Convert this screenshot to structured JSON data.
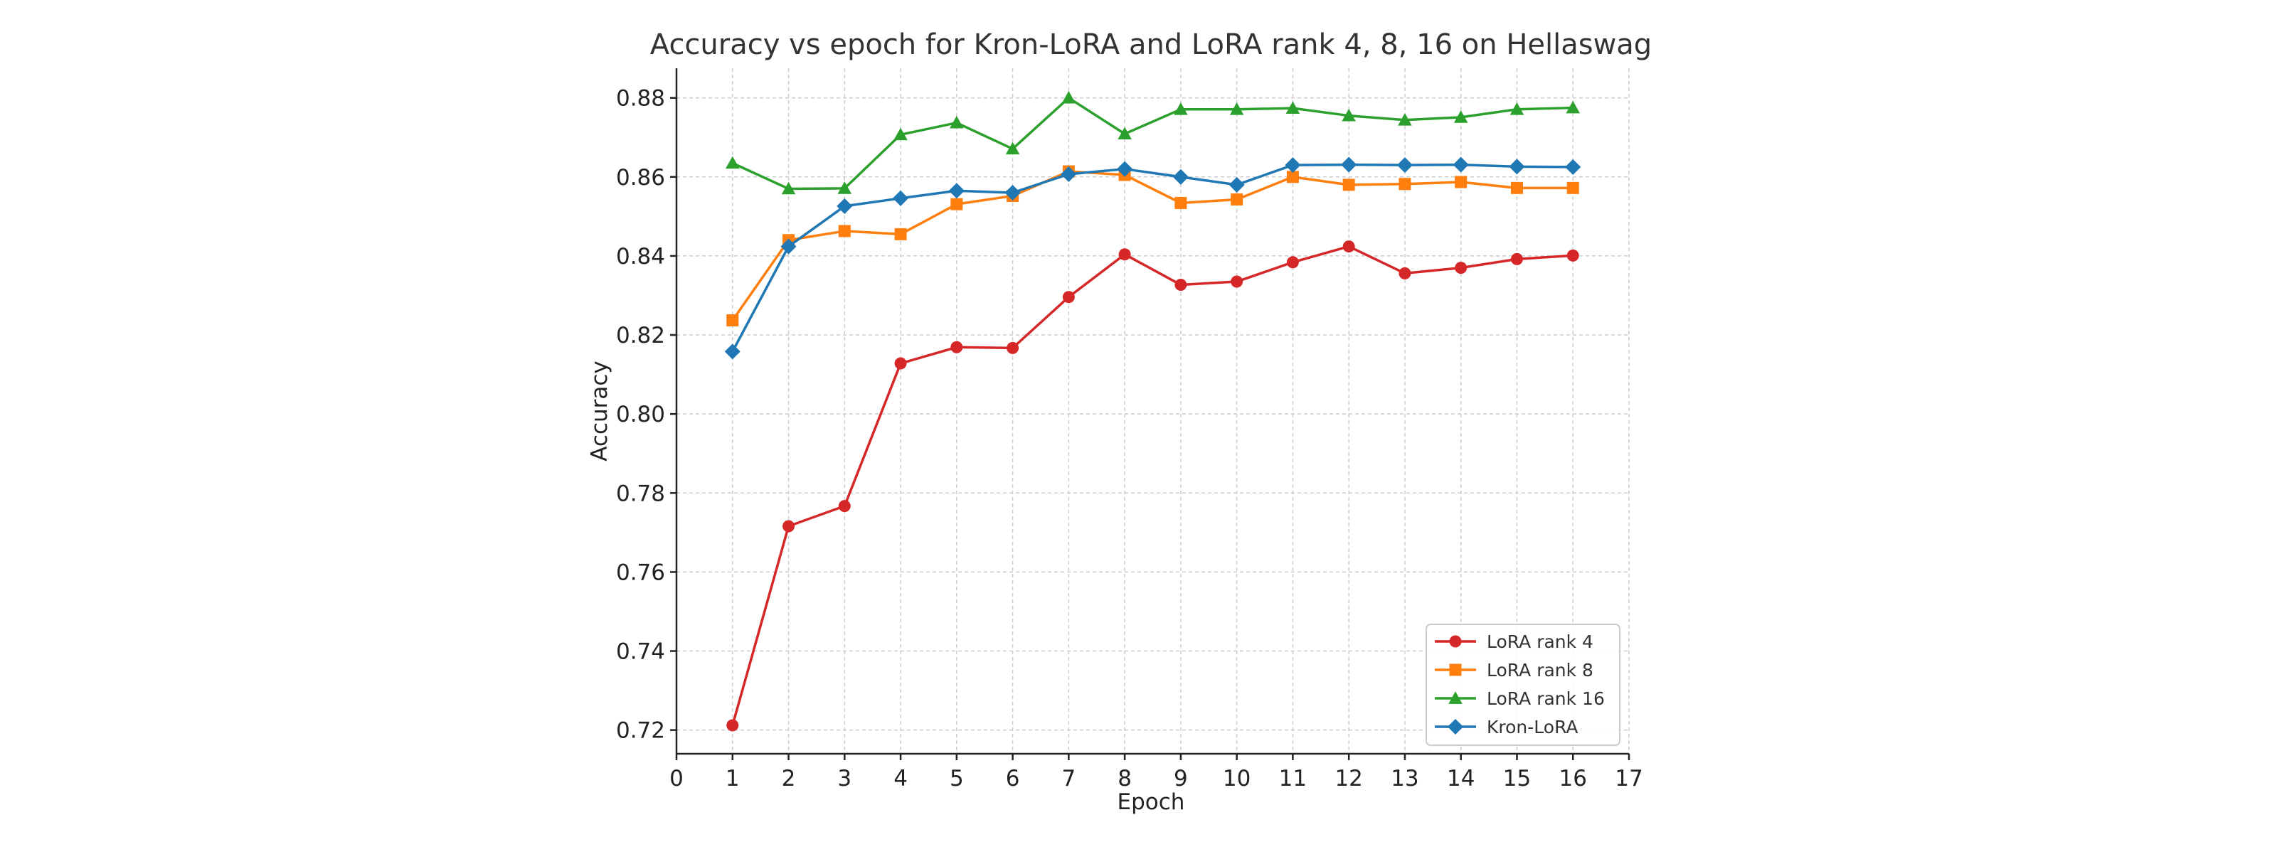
{
  "chart_data": {
    "type": "line",
    "title": "Accuracy vs epoch for Kron-LoRA and LoRA rank 4, 8, 16 on Hellaswag",
    "xlabel": "Epoch",
    "ylabel": "Accuracy",
    "xlim": [
      0,
      17
    ],
    "ylim": [
      0.714,
      0.8875
    ],
    "xticks": [
      0,
      1,
      2,
      3,
      4,
      5,
      6,
      7,
      8,
      9,
      10,
      11,
      12,
      13,
      14,
      15,
      16,
      17
    ],
    "yticks": [
      0.72,
      0.74,
      0.76,
      0.78,
      0.8,
      0.82,
      0.84,
      0.86,
      0.88
    ],
    "ytick_labels": [
      "0.72",
      "0.74",
      "0.76",
      "0.78",
      "0.80",
      "0.82",
      "0.84",
      "0.86",
      "0.88"
    ],
    "grid": true,
    "legend_position": "bottom-right",
    "x": [
      1,
      2,
      3,
      4,
      5,
      6,
      7,
      8,
      9,
      10,
      11,
      12,
      13,
      14,
      15,
      16
    ],
    "series": [
      {
        "name": "LoRA rank 4",
        "color": "#d62728",
        "marker": "circle",
        "values": [
          0.7212,
          0.7716,
          0.7767,
          0.8128,
          0.8169,
          0.8167,
          0.8296,
          0.8404,
          0.8327,
          0.8335,
          0.8384,
          0.8424,
          0.8356,
          0.837,
          0.8392,
          0.8401
        ]
      },
      {
        "name": "LoRA rank 8",
        "color": "#ff7f0e",
        "marker": "square",
        "values": [
          0.8237,
          0.844,
          0.8463,
          0.8455,
          0.8531,
          0.8552,
          0.8614,
          0.8605,
          0.8534,
          0.8543,
          0.86,
          0.858,
          0.8582,
          0.8587,
          0.8572,
          0.8572
        ]
      },
      {
        "name": "LoRA rank 16",
        "color": "#2ca02c",
        "marker": "triangle",
        "values": [
          0.8635,
          0.857,
          0.8571,
          0.8707,
          0.8737,
          0.8671,
          0.88,
          0.8709,
          0.8771,
          0.8771,
          0.8774,
          0.8755,
          0.8744,
          0.8751,
          0.8771,
          0.8775
        ]
      },
      {
        "name": "Kron-LoRA",
        "color": "#1f77b4",
        "marker": "diamond",
        "values": [
          0.8158,
          0.8424,
          0.8526,
          0.8546,
          0.8565,
          0.856,
          0.8607,
          0.862,
          0.86,
          0.858,
          0.863,
          0.8631,
          0.863,
          0.8631,
          0.8626,
          0.8625
        ]
      }
    ]
  }
}
